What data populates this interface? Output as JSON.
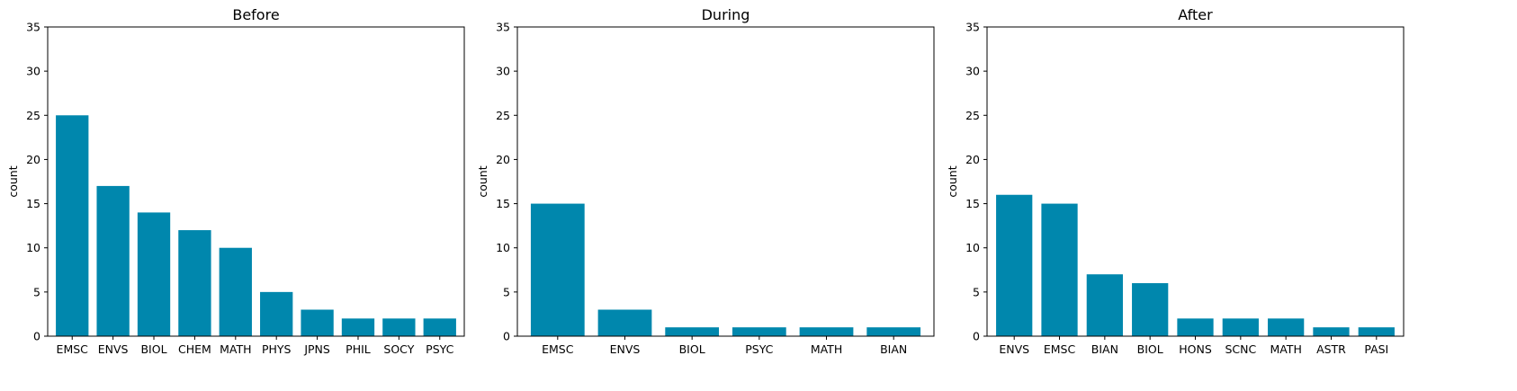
{
  "chart_data": [
    {
      "type": "bar",
      "title": "Before",
      "xlabel": "",
      "ylabel": "count",
      "ylim": [
        0,
        35
      ],
      "yticks": [
        "0",
        "5",
        "10",
        "15",
        "20",
        "25",
        "30",
        "35"
      ],
      "categories": [
        "EMSC",
        "ENVS",
        "BIOL",
        "CHEM",
        "MATH",
        "PHYS",
        "JPNS",
        "PHIL",
        "SOCY",
        "PSYC"
      ],
      "values": [
        25,
        17,
        14,
        12,
        10,
        5,
        3,
        2,
        2,
        2
      ],
      "color": "#0087ad"
    },
    {
      "type": "bar",
      "title": "During",
      "xlabel": "",
      "ylabel": "count",
      "ylim": [
        0,
        35
      ],
      "yticks": [
        "0",
        "5",
        "10",
        "15",
        "20",
        "25",
        "30",
        "35"
      ],
      "categories": [
        "EMSC",
        "ENVS",
        "BIOL",
        "PSYC",
        "MATH",
        "BIAN"
      ],
      "values": [
        15,
        3,
        1,
        1,
        1,
        1
      ],
      "color": "#0087ad"
    },
    {
      "type": "bar",
      "title": "After",
      "xlabel": "",
      "ylabel": "count",
      "ylim": [
        0,
        35
      ],
      "yticks": [
        "0",
        "5",
        "10",
        "15",
        "20",
        "25",
        "30",
        "35"
      ],
      "categories": [
        "ENVS",
        "EMSC",
        "BIAN",
        "BIOL",
        "HONS",
        "SCNC",
        "MATH",
        "ASTR",
        "PASI"
      ],
      "values": [
        16,
        15,
        7,
        6,
        2,
        2,
        2,
        1,
        1
      ],
      "color": "#0087ad"
    }
  ]
}
